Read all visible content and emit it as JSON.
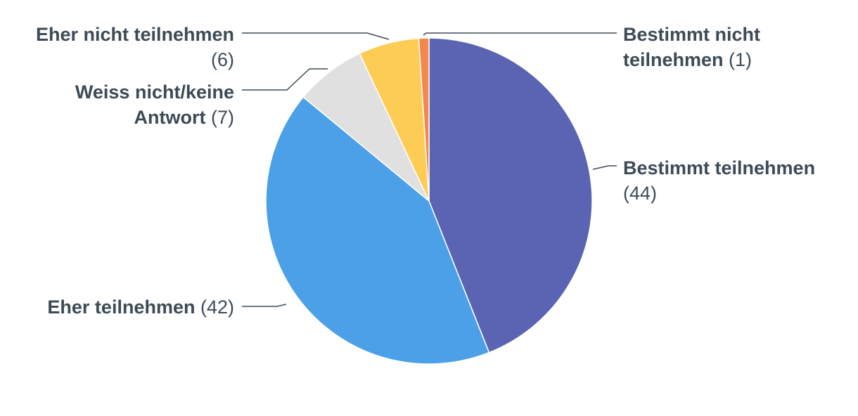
{
  "chart_data": {
    "type": "pie",
    "title": "",
    "slices": [
      {
        "label": "Bestimmt teilnehmen",
        "value": 44,
        "color": "#5a64b2"
      },
      {
        "label": "Eher teilnehmen",
        "value": 42,
        "color": "#4ba0e8"
      },
      {
        "label": "Weiss nicht/keine Antwort",
        "value": 7,
        "color": "#e0e0e0"
      },
      {
        "label": "Eher nicht teilnehmen",
        "value": 6,
        "color": "#fdcc55"
      },
      {
        "label": "Bestimmt nicht teilnehmen",
        "value": 1,
        "color": "#f4874b"
      }
    ],
    "data_labels": [
      {
        "lines": [
          {
            "name": "Bestimmt teilnehmen",
            "val": ""
          },
          {
            "name": "",
            "val": "(44)"
          }
        ]
      },
      {
        "lines": [
          {
            "name": "Eher teilnehmen",
            "val": " (42)"
          }
        ]
      },
      {
        "lines": [
          {
            "name": "Weiss nicht/keine",
            "val": ""
          },
          {
            "name": "Antwort",
            "val": " (7)"
          }
        ]
      },
      {
        "lines": [
          {
            "name": "Eher nicht teilnehmen",
            "val": ""
          },
          {
            "name": "",
            "val": "(6)"
          }
        ]
      },
      {
        "lines": [
          {
            "name": "Bestimmt nicht",
            "val": ""
          },
          {
            "name": "teilnehmen",
            "val": " (1)"
          }
        ]
      }
    ],
    "start_angle": "12 o'clock",
    "direction": "clockwise",
    "legend": "none"
  }
}
